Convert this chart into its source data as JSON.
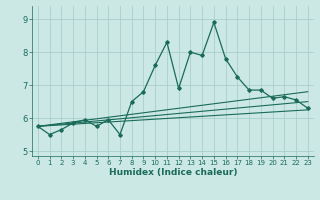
{
  "title": "",
  "xlabel": "Humidex (Indice chaleur)",
  "xlim": [
    -0.5,
    23.5
  ],
  "ylim": [
    4.85,
    9.4
  ],
  "yticks": [
    5,
    6,
    7,
    8,
    9
  ],
  "xticks": [
    0,
    1,
    2,
    3,
    4,
    5,
    6,
    7,
    8,
    9,
    10,
    11,
    12,
    13,
    14,
    15,
    16,
    17,
    18,
    19,
    20,
    21,
    22,
    23
  ],
  "bg_color": "#cce8e4",
  "grid_color": "#aacfca",
  "line_color": "#1a6b5a",
  "line1_x": [
    0,
    1,
    2,
    3,
    4,
    5,
    6,
    7,
    8,
    9,
    10,
    11,
    12,
    13,
    14,
    15,
    16,
    17,
    18,
    19,
    20,
    21,
    22,
    23
  ],
  "line1_y": [
    5.75,
    5.5,
    5.65,
    5.85,
    5.95,
    5.75,
    5.95,
    5.5,
    6.5,
    6.8,
    7.6,
    8.3,
    6.9,
    8.0,
    7.9,
    8.9,
    7.8,
    7.25,
    6.85,
    6.85,
    6.6,
    6.65,
    6.55,
    6.3
  ],
  "line2_x": [
    0,
    23
  ],
  "line2_y": [
    5.75,
    6.25
  ],
  "line3_x": [
    0,
    23
  ],
  "line3_y": [
    5.75,
    6.5
  ],
  "line4_x": [
    0,
    23
  ],
  "line4_y": [
    5.75,
    6.8
  ],
  "xlabel_fontsize": 6.5,
  "tick_fontsize_x": 5.0,
  "tick_fontsize_y": 6.0
}
